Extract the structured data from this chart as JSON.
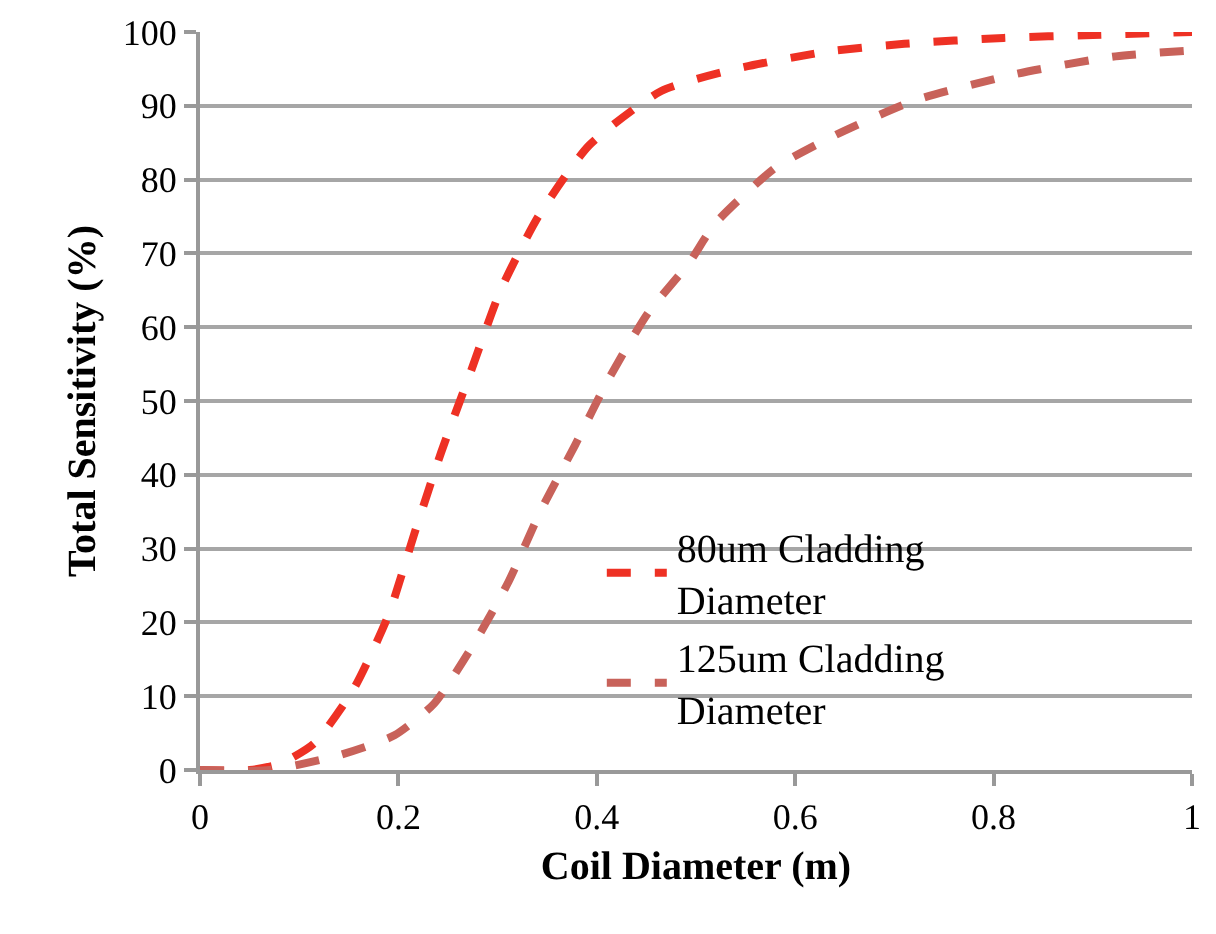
{
  "chart_data": {
    "type": "line",
    "xlabel": "Coil Diameter (m)",
    "ylabel": "Total Sensitivity (%)",
    "xlim": [
      0,
      1
    ],
    "xticks": [
      0,
      0.2,
      0.4,
      0.6,
      0.8,
      1
    ],
    "ylim": [
      0,
      100
    ],
    "yticks": [
      0,
      10,
      20,
      30,
      40,
      50,
      60,
      70,
      80,
      90,
      100
    ],
    "grid": "y",
    "legend": "bottom right",
    "marker": "none",
    "line_style": "dashed",
    "series": [
      {
        "name": "80um Cladding Diameter",
        "color": "#ee3124",
        "x": [
          0,
          0.05,
          0.08,
          0.115,
          0.155,
          0.19,
          0.216,
          0.243,
          0.273,
          0.303,
          0.341,
          0.392,
          0.465,
          0.54,
          0.63,
          0.71,
          0.81,
          0.9,
          1
        ],
        "values": [
          0,
          0,
          0.8,
          3.6,
          11,
          21,
          32,
          43,
          54,
          65,
          75,
          84.6,
          92,
          95,
          97.3,
          98.4,
          99.2,
          99.6,
          100
        ]
      },
      {
        "name": "125um Cladding Diameter",
        "color": "#c8625a",
        "x": [
          0,
          0.07,
          0.14,
          0.196,
          0.236,
          0.277,
          0.311,
          0.343,
          0.378,
          0.412,
          0.452,
          0.493,
          0.519,
          0.58,
          0.64,
          0.72,
          0.822,
          0.923,
          1
        ],
        "values": [
          0,
          0,
          2,
          4.7,
          9,
          17.3,
          25.5,
          35,
          44,
          53,
          62,
          68.7,
          74,
          81.6,
          86,
          90.7,
          94.3,
          96.7,
          97.5
        ]
      }
    ]
  }
}
